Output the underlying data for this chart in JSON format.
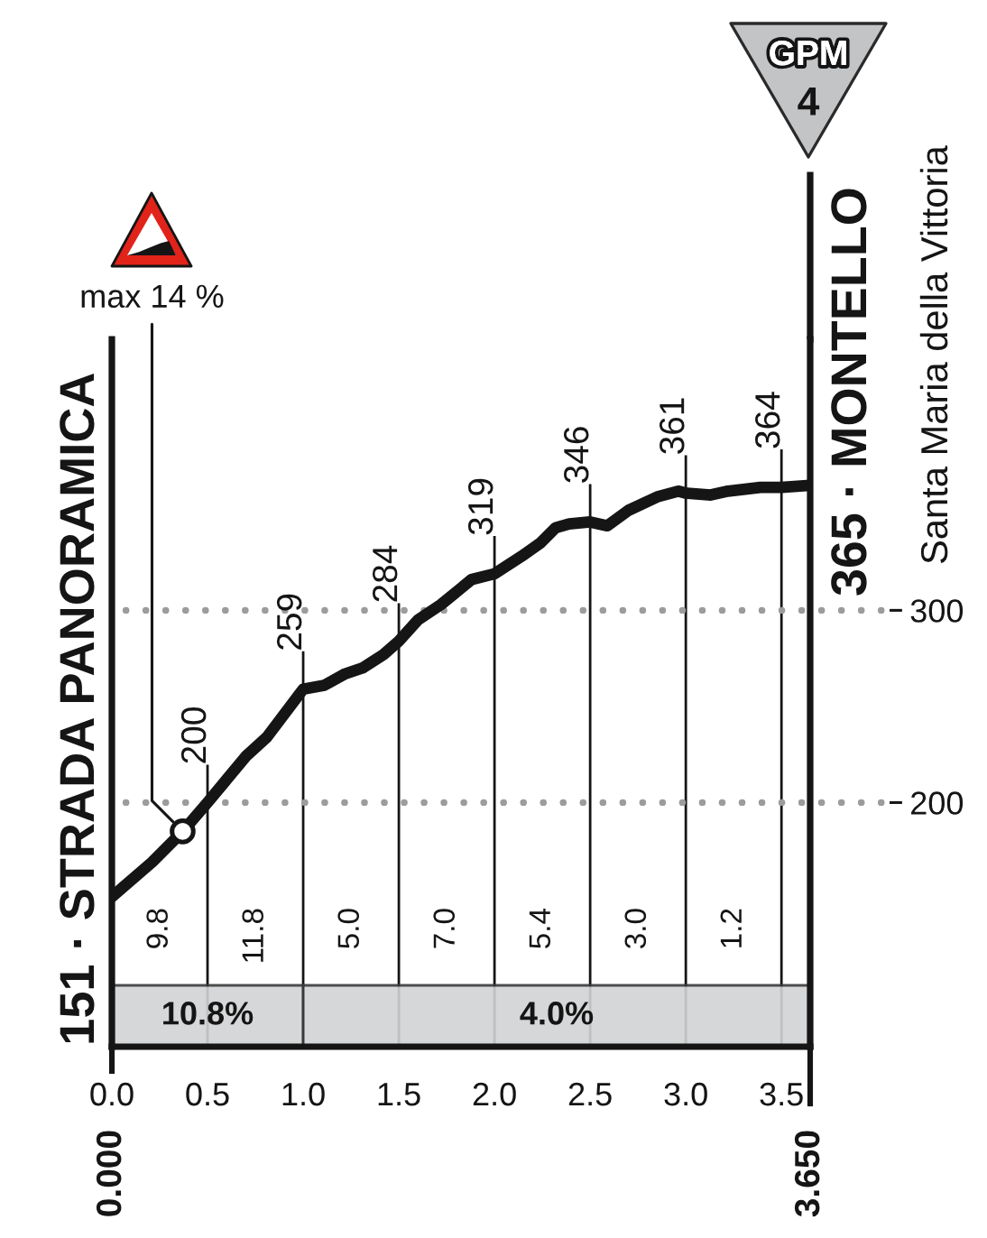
{
  "chart_data": {
    "type": "line",
    "x": [
      0,
      0.21,
      0.37,
      0.5,
      0.7,
      0.81,
      1.0,
      1.11,
      1.22,
      1.31,
      1.42,
      1.5,
      1.6,
      1.72,
      1.88,
      2.0,
      2.14,
      2.24,
      2.32,
      2.39,
      2.5,
      2.59,
      2.7,
      2.85,
      2.96,
      3.0,
      3.13,
      3.22,
      3.39,
      3.5,
      3.65
    ],
    "series": [
      {
        "color": "#151515",
        "values": [
          151,
          169,
          185,
          200,
          224,
          234,
          259,
          261,
          267,
          270,
          277,
          284,
          295,
          303,
          316,
          319,
          328,
          335,
          343,
          345,
          346,
          344,
          352,
          359,
          362,
          361,
          360,
          362,
          364,
          364,
          365
        ],
        "value_labels": [
          null,
          null,
          null,
          "200",
          null,
          null,
          "259",
          null,
          null,
          null,
          null,
          "284",
          null,
          null,
          null,
          "319",
          null,
          null,
          null,
          null,
          "346",
          null,
          null,
          null,
          null,
          "361",
          null,
          null,
          null,
          "364",
          null
        ]
      }
    ],
    "xlim": [
      0,
      3.65
    ],
    "xticks": [
      {
        "value": 0,
        "label": "0.0"
      },
      0.5,
      {
        "value": 1,
        "label": "1.0"
      },
      1.5,
      {
        "value": 2,
        "label": "2.0"
      },
      2.5,
      {
        "value": 3,
        "label": "3.0"
      },
      3.5
    ],
    "x2lim": [
      0,
      3.65
    ],
    "x2ticks": [
      {
        "value": 0,
        "label": "0.000"
      },
      {
        "value": 3.65,
        "label": "3.650"
      }
    ],
    "ylim": [
      73,
      441
    ],
    "yticks": [
      200,
      300
    ],
    "grid": true,
    "bands": [
      {
        "axis": "x",
        "from": 0,
        "to": 1.0,
        "label": "10.8%",
        "color": "#d1d3d4"
      },
      {
        "axis": "x",
        "from": 1.0,
        "to": 3.65,
        "label": "4.0%",
        "color": "#d1d3d4"
      }
    ],
    "annotations": [
      {
        "text": "151 · STRADA PANORAMICA",
        "x": 0,
        "y": 151
      },
      {
        "text": "365 · MONTELLO",
        "x": 3.65,
        "y": 365
      },
      {
        "text": "max 14 %",
        "x": 0.37,
        "y": 185
      },
      "Santa Maria della Vittoria",
      "GPM",
      "4",
      "9.8",
      "11.8",
      "5.0",
      "7.0",
      "5.4",
      "3.0",
      "1.2"
    ]
  }
}
